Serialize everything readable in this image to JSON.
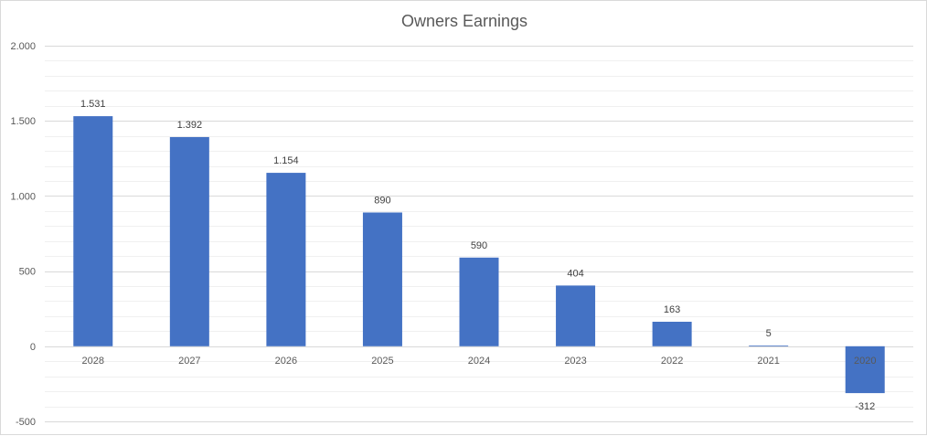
{
  "chart_data": {
    "type": "bar",
    "title": "Owners Earnings",
    "xlabel": "",
    "ylabel": "",
    "categories": [
      "2028",
      "2027",
      "2026",
      "2025",
      "2024",
      "2023",
      "2022",
      "2021",
      "2020"
    ],
    "series": [
      {
        "values": [
          1531,
          1392,
          1154,
          890,
          590,
          404,
          163,
          5,
          -312
        ],
        "labels": [
          "1.531",
          "1.392",
          "1.154",
          "890",
          "590",
          "404",
          "163",
          "5",
          "-312"
        ],
        "color": "#4472c4"
      }
    ],
    "ylim": [
      -500,
      2000
    ],
    "yticks": [
      2000,
      1500,
      1000,
      500,
      0,
      -500
    ],
    "ytick_labels": [
      "2.000",
      "1.500",
      "1.000",
      "500",
      "0",
      "-500"
    ],
    "major_grid_step": 500,
    "minor_grid_step": 100,
    "grid": true,
    "legend": "none",
    "colors": {
      "bar": "#4472c4",
      "grid_major": "#d9d9d9",
      "grid_minor": "#f0f0f0",
      "text": "#595959"
    }
  }
}
